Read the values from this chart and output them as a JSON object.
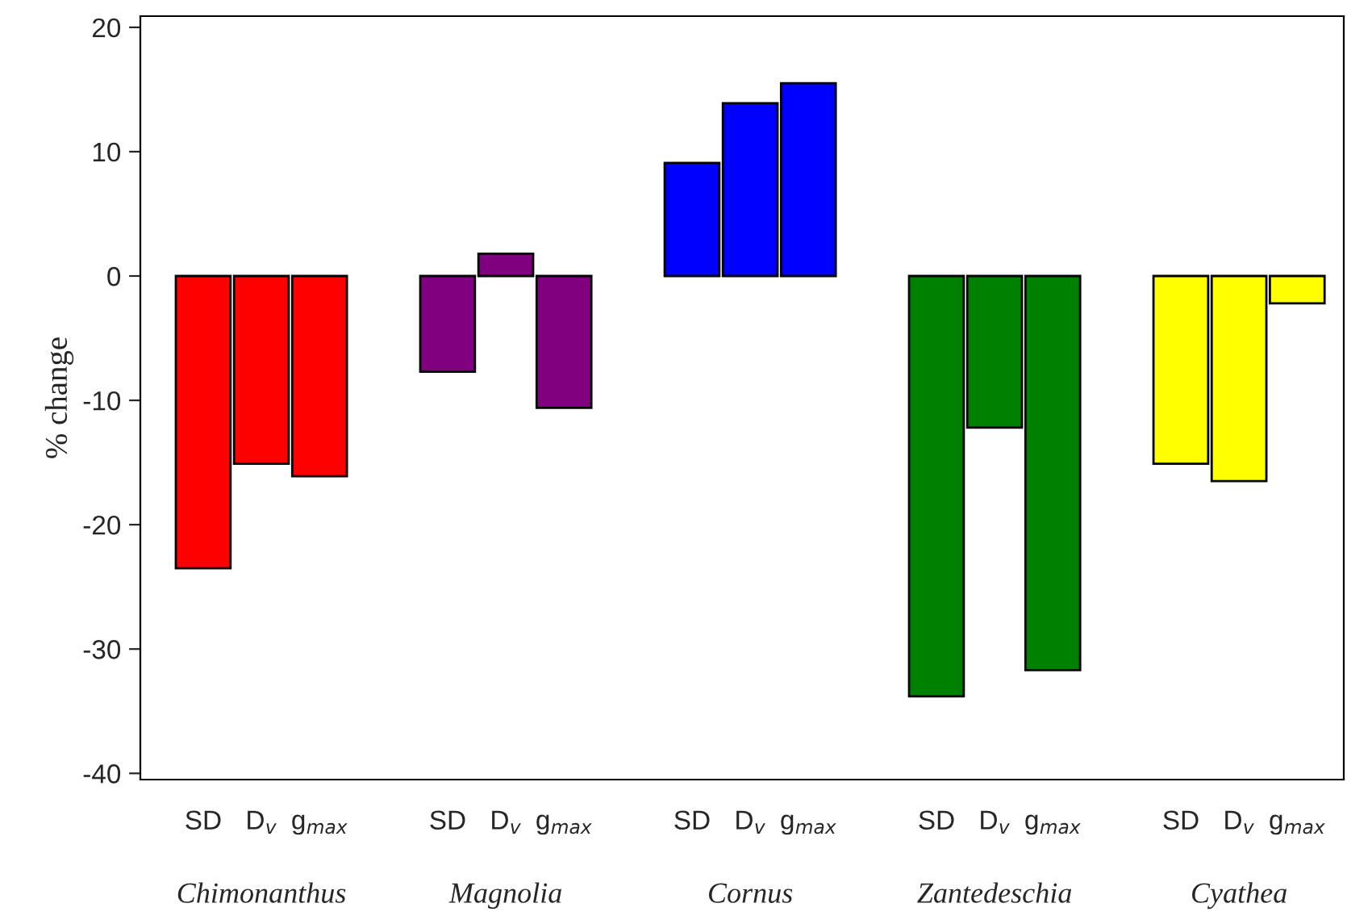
{
  "chart_data": {
    "type": "bar",
    "ylabel": "% change",
    "categories": [
      "SD",
      "D$_{v}$",
      "g$_{max}$",
      "SD",
      "D$_{v}$",
      "g$_{max}$",
      "SD",
      "D$_{v}$",
      "g$_{max}$",
      "SD",
      "D$_{v}$",
      "g$_{max}$",
      "SD",
      "D$_{v}$",
      "g$_{max}$"
    ],
    "series": [
      {
        "color": "#ff0000",
        "values": [
          -23.5,
          -15.1,
          -16.1,
          null,
          null,
          null,
          null,
          null,
          null,
          null,
          null,
          null,
          null,
          null,
          null
        ]
      },
      {
        "color": "#800080",
        "values": [
          null,
          null,
          null,
          -7.7,
          1.8,
          -10.6,
          null,
          null,
          null,
          null,
          null,
          null,
          null,
          null,
          null
        ]
      },
      {
        "color": "#0000ff",
        "values": [
          null,
          null,
          null,
          null,
          null,
          null,
          9.1,
          13.9,
          15.5,
          null,
          null,
          null,
          null,
          null,
          null
        ]
      },
      {
        "color": "#008000",
        "values": [
          null,
          null,
          null,
          null,
          null,
          null,
          null,
          null,
          null,
          -33.8,
          -12.2,
          -31.7,
          null,
          null,
          null
        ]
      },
      {
        "color": "#ffff00",
        "values": [
          null,
          null,
          null,
          null,
          null,
          null,
          null,
          null,
          null,
          null,
          null,
          null,
          -15.1,
          -16.5,
          -2.2
        ]
      }
    ],
    "annotations": [
      "Chimonanthus",
      "Magnolia",
      "Cornus",
      "Zantedeschia",
      "Cyathea"
    ],
    "ylim": [
      -40.5,
      20.9
    ],
    "yticks": [
      -40,
      -30,
      -20,
      -10,
      0,
      10,
      20
    ],
    "grid": false,
    "legend": false
  }
}
